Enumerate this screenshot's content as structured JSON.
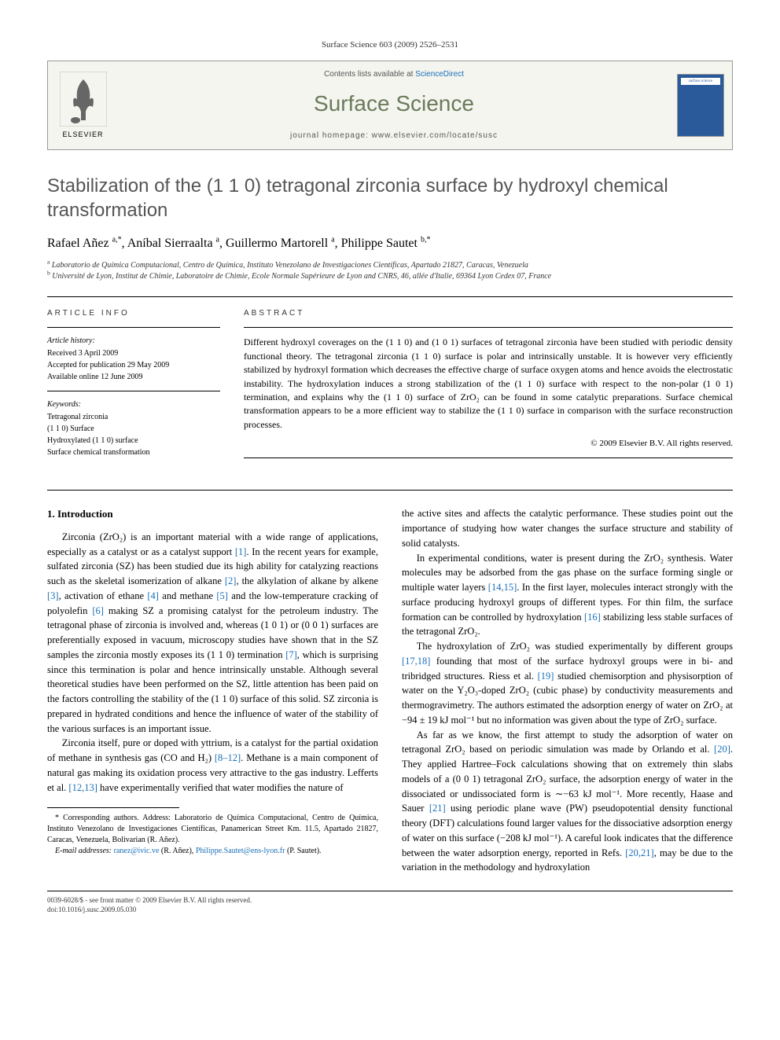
{
  "journal_header": "Surface Science 603 (2009) 2526–2531",
  "header": {
    "contents_prefix": "Contents lists available at ",
    "contents_link": "ScienceDirect",
    "journal_name": "Surface Science",
    "homepage_prefix": "journal homepage: ",
    "homepage_url": "www.elsevier.com/locate/susc",
    "publisher": "ELSEVIER",
    "cover_label": "surface science"
  },
  "title": "Stabilization of the (1 1 0) tetragonal zirconia surface by hydroxyl chemical transformation",
  "authors_html": "Rafael Añez <sup>a,*</sup>, Aníbal Sierraalta <sup>a</sup>, Guillermo Martorell <sup>a</sup>, Philippe Sautet <sup>b,*</sup>",
  "affiliations": [
    "a Laboratorio de Química Computacional, Centro de Química, Instituto Venezolano de Investigaciones Científicas, Apartado 21827, Caracas, Venezuela",
    "b Université de Lyon, Institut de Chimie, Laboratoire de Chimie, Ecole Normale Supérieure de Lyon and CNRS, 46, allée d'Italie, 69364 Lyon Cedex 07, France"
  ],
  "article_info": {
    "heading": "ARTICLE INFO",
    "history_label": "Article history:",
    "history": [
      "Received 3 April 2009",
      "Accepted for publication 29 May 2009",
      "Available online 12 June 2009"
    ],
    "keywords_label": "Keywords:",
    "keywords": [
      "Tetragonal zirconia",
      "(1 1 0) Surface",
      "Hydroxylated (1 1 0) surface",
      "Surface chemical transformation"
    ]
  },
  "abstract": {
    "heading": "ABSTRACT",
    "text": "Different hydroxyl coverages on the (1 1 0) and (1 0 1) surfaces of tetragonal zirconia have been studied with periodic density functional theory. The tetragonal zirconia (1 1 0) surface is polar and intrinsically unstable. It is however very efficiently stabilized by hydroxyl formation which decreases the effective charge of surface oxygen atoms and hence avoids the electrostatic instability. The hydroxylation induces a strong stabilization of the (1 1 0) surface with respect to the non-polar (1 0 1) termination, and explains why the (1 1 0) surface of ZrO₂ can be found in some catalytic preparations. Surface chemical transformation appears to be a more efficient way to stabilize the (1 1 0) surface in comparison with the surface reconstruction processes.",
    "copyright": "© 2009 Elsevier B.V. All rights reserved."
  },
  "section1_heading": "1. Introduction",
  "col1": {
    "p1": "Zirconia (ZrO₂) is an important material with a wide range of applications, especially as a catalyst or as a catalyst support [1]. In the recent years for example, sulfated zirconia (SZ) has been studied due its high ability for catalyzing reactions such as the skeletal isomerization of alkane [2], the alkylation of alkane by alkene [3], activation of ethane [4] and methane [5] and the low-temperature cracking of polyolefin [6] making SZ a promising catalyst for the petroleum industry. The tetragonal phase of zirconia is involved and, whereas (1 0 1) or (0 0 1) surfaces are preferentially exposed in vacuum, microscopy studies have shown that in the SZ samples the zirconia mostly exposes its (1 1 0) termination [7], which is surprising since this termination is polar and hence intrinsically unstable. Although several theoretical studies have been performed on the SZ, little attention has been paid on the factors controlling the stability of the (1 1 0) surface of this solid. SZ zirconia is prepared in hydrated conditions and hence the influence of water of the stability of the various surfaces is an important issue.",
    "p2": "Zirconia itself, pure or doped with yttrium, is a catalyst for the partial oxidation of methane in synthesis gas (CO and H₂) [8–12]. Methane is a main component of natural gas making its oxidation process very attractive to the gas industry. Lefferts et al. [12,13] have experimentally verified that water modifies the nature of"
  },
  "col2": {
    "p1": "the active sites and affects the catalytic performance. These studies point out the importance of studying how water changes the surface structure and stability of solid catalysts.",
    "p2": "In experimental conditions, water is present during the ZrO₂ synthesis. Water molecules may be adsorbed from the gas phase on the surface forming single or multiple water layers [14,15]. In the first layer, molecules interact strongly with the surface producing hydroxyl groups of different types. For thin film, the surface formation can be controlled by hydroxylation [16] stabilizing less stable surfaces of the tetragonal ZrO₂.",
    "p3": "The hydroxylation of ZrO₂ was studied experimentally by different groups [17,18] founding that most of the surface hydroxyl groups were in bi- and tribridged structures. Riess et al. [19] studied chemisorption and physisorption of water on the Y₂O₃-doped ZrO₂ (cubic phase) by conductivity measurements and thermogravimetry. The authors estimated the adsorption energy of water on ZrO₂ at −94 ± 19 kJ mol⁻¹ but no information was given about the type of ZrO₂ surface.",
    "p4": "As far as we know, the first attempt to study the adsorption of water on tetragonal ZrO₂ based on periodic simulation was made by Orlando et al. [20]. They applied Hartree–Fock calculations showing that on extremely thin slabs models of a (0 0 1) tetragonal ZrO₂ surface, the adsorption energy of water in the dissociated or undissociated form is ∼−63 kJ mol⁻¹. More recently, Haase and Sauer [21] using periodic plane wave (PW) pseudopotential density functional theory (DFT) calculations found larger values for the dissociative adsorption energy of water on this surface (−208 kJ mol⁻¹). A careful look indicates that the difference between the water adsorption energy, reported in Refs. [20,21], may be due to the variation in the methodology and hydroxylation"
  },
  "footnote": {
    "corr": "* Corresponding authors. Address: Laboratorio de Química Computacional, Centro de Química, Instituto Venezolano de Investigaciones Científicas, Panamerican Street Km. 11.5, Apartado 21827, Caracas, Venezuela, Bolivarian (R. Añez).",
    "email_label": "E-mail addresses:",
    "email1": "ranez@ivic.ve",
    "email1_who": "(R. Añez),",
    "email2": "Philippe.Sautet@ens-lyon.fr",
    "email2_who": "(P. Sautet)."
  },
  "footer": {
    "line1": "0039-6028/$ - see front matter © 2009 Elsevier B.V. All rights reserved.",
    "line2": "doi:10.1016/j.susc.2009.05.030"
  },
  "refs": [
    "1",
    "2",
    "3",
    "4",
    "5",
    "6",
    "7",
    "8",
    "9",
    "10",
    "11",
    "12",
    "13",
    "14",
    "15",
    "16",
    "17",
    "18",
    "19",
    "20",
    "21"
  ],
  "colors": {
    "link": "#1a6fb8",
    "journal_name": "#6b7a5a",
    "title": "#555555",
    "text": "#000000",
    "cover_bg": "#2a5a9a",
    "header_bg": "#f5f5f0"
  }
}
